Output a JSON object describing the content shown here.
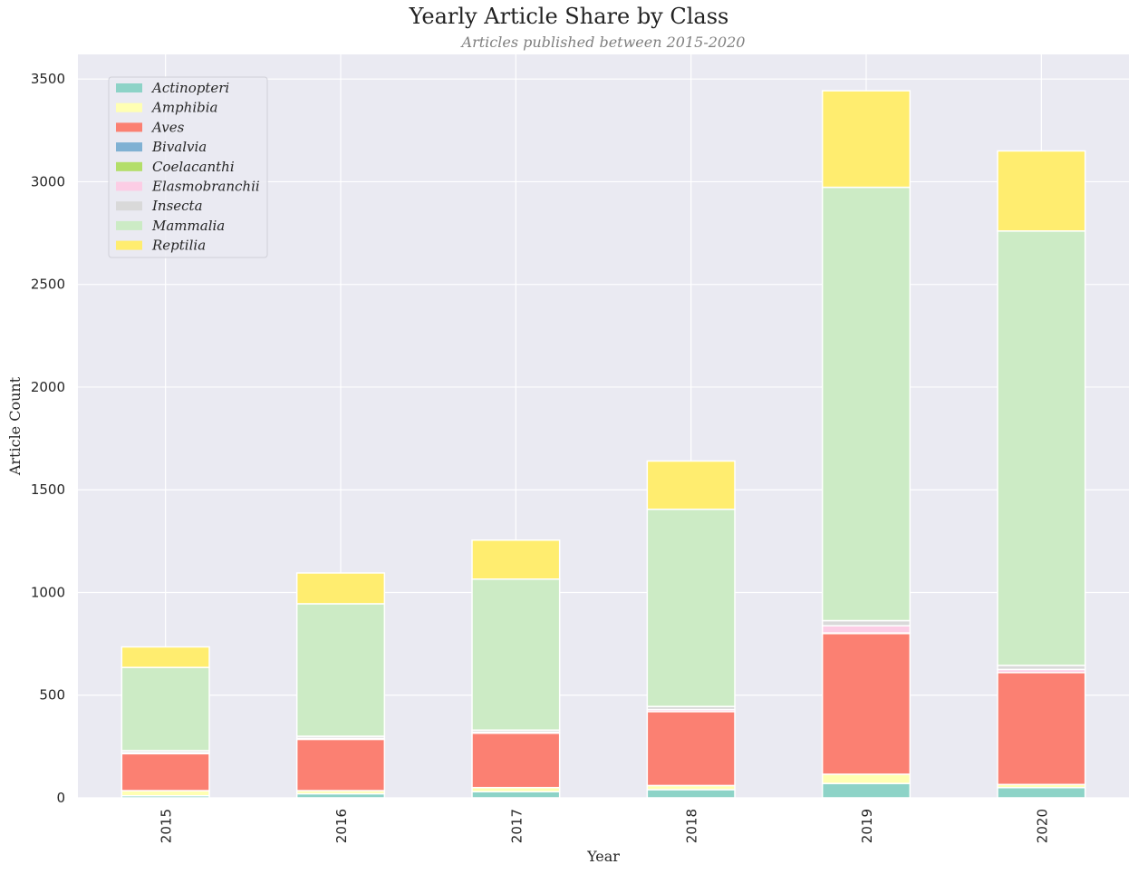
{
  "chart_data": {
    "type": "bar",
    "stacked": true,
    "title": "Yearly Article Share by Class",
    "subtitle": "Articles published between 2015-2020",
    "xlabel": "Year",
    "ylabel": "Article Count",
    "categories": [
      "2015",
      "2016",
      "2017",
      "2018",
      "2019",
      "2020"
    ],
    "ylim": [
      0,
      3620
    ],
    "yticks": [
      0,
      500,
      1000,
      1500,
      2000,
      2500,
      3000,
      3500
    ],
    "grid": true,
    "legend_position": "top-left",
    "series": [
      {
        "name": "Actinopteri",
        "color": "#8dd3c7",
        "values": [
          10,
          20,
          30,
          40,
          70,
          50
        ]
      },
      {
        "name": "Amphibia",
        "color": "#ffffb3",
        "values": [
          25,
          15,
          20,
          20,
          45,
          15
        ]
      },
      {
        "name": "Aves",
        "color": "#fb8072",
        "values": [
          180,
          250,
          265,
          360,
          685,
          545
        ]
      },
      {
        "name": "Bivalvia",
        "color": "#80b1d3",
        "values": [
          0,
          0,
          0,
          0,
          2,
          0
        ]
      },
      {
        "name": "Coelacanthi",
        "color": "#b3de69",
        "values": [
          0,
          0,
          0,
          0,
          1,
          0
        ]
      },
      {
        "name": "Elasmobranchii",
        "color": "#fccde5",
        "values": [
          5,
          5,
          5,
          10,
          35,
          15
        ]
      },
      {
        "name": "Insecta",
        "color": "#d9d9d9",
        "values": [
          10,
          10,
          10,
          15,
          25,
          20
        ]
      },
      {
        "name": "Mammalia",
        "color": "#ccebc5",
        "values": [
          405,
          645,
          735,
          960,
          2110,
          2115
        ]
      },
      {
        "name": "Reptilia",
        "color": "#ffed6f",
        "values": [
          100,
          150,
          190,
          235,
          470,
          390
        ]
      }
    ]
  }
}
